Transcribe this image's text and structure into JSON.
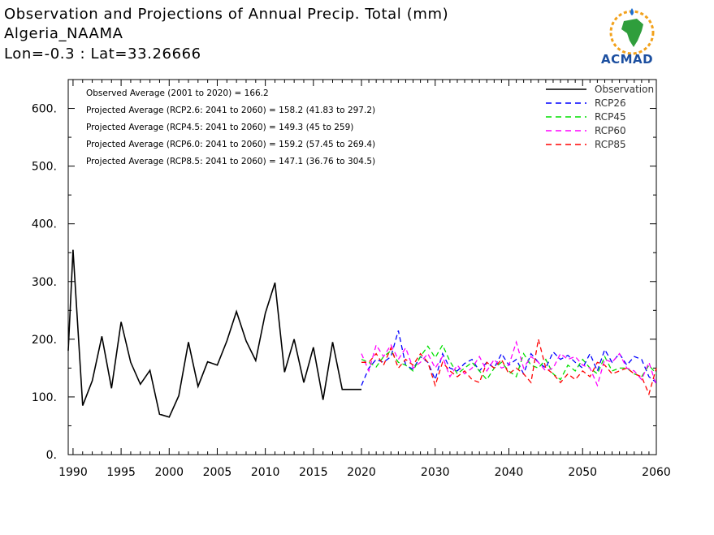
{
  "header": {
    "title": "Observation and Projections of Annual Precip. Total (mm)",
    "location": "Algeria_NAAMA",
    "coords": "Lon=-0.3 : Lat=33.26666"
  },
  "logo": {
    "text": "ACMAD"
  },
  "chart_data": {
    "type": "line",
    "title": "Observation and Projections of Annual Precip. Total (mm)",
    "xlabel": "",
    "ylabel": "",
    "xlim": [
      1989.5,
      2060
    ],
    "ylim": [
      0,
      650
    ],
    "x_ticks": [
      1990,
      1995,
      2000,
      2005,
      2010,
      2015,
      2020,
      2030,
      2040,
      2050,
      2060
    ],
    "y_ticks": [
      0,
      100,
      200,
      300,
      400,
      500,
      600
    ],
    "y_tick_labels": [
      "0.",
      "100.",
      "200.",
      "300.",
      "400.",
      "500.",
      "600."
    ],
    "grid": false,
    "legend_position": "top-right",
    "annotations": [
      "Observed Average (2001 to 2020) = 166.2",
      "Projected Average (RCP2.6: 2041 to 2060) = 158.2 (41.83 to 297.2)",
      "Projected Average (RCP4.5: 2041 to 2060) = 149.3 (45 to 259)",
      "Projected Average (RCP6.0: 2041 to 2060) = 159.2 (57.45 to 269.4)",
      "Projected Average (RCP8.5: 2041 to 2060) = 147.1 (36.76 to 304.5)"
    ],
    "series": [
      {
        "name": "Observation",
        "color": "#000000",
        "dashed": false,
        "x": [
          1989.5,
          1990,
          1991,
          1992,
          1993,
          1994,
          1995,
          1996,
          1997,
          1998,
          1999,
          2000,
          2001,
          2002,
          2003,
          2004,
          2005,
          2006,
          2007,
          2008,
          2009,
          2010,
          2011,
          2012,
          2013,
          2014,
          2015,
          2016,
          2017,
          2018,
          2019,
          2020
        ],
        "y": [
          180,
          355,
          85,
          128,
          205,
          115,
          230,
          160,
          122,
          146,
          70,
          65,
          102,
          195,
          118,
          161,
          155,
          197,
          248,
          197,
          163,
          245,
          298,
          143,
          200,
          125,
          186,
          95,
          195,
          113,
          113,
          113
        ]
      },
      {
        "name": "RCP26",
        "color": "#0000ff",
        "dashed": true,
        "x": [
          2020,
          2021,
          2022,
          2023,
          2024,
          2025,
          2026,
          2027,
          2028,
          2029,
          2030,
          2031,
          2032,
          2033,
          2034,
          2035,
          2036,
          2037,
          2038,
          2039,
          2040,
          2041,
          2042,
          2043,
          2044,
          2045,
          2046,
          2047,
          2048,
          2049,
          2050,
          2051,
          2052,
          2053,
          2054,
          2055,
          2056,
          2057,
          2058,
          2059,
          2060
        ],
        "y": [
          120,
          150,
          165,
          160,
          170,
          215,
          155,
          148,
          170,
          160,
          130,
          175,
          150,
          145,
          158,
          165,
          145,
          160,
          150,
          175,
          155,
          165,
          140,
          175,
          160,
          150,
          178,
          165,
          172,
          160,
          150,
          175,
          145,
          182,
          160,
          175,
          155,
          170,
          165,
          135,
          125
        ]
      },
      {
        "name": "RCP45",
        "color": "#00e000",
        "dashed": true,
        "x": [
          2020,
          2021,
          2022,
          2023,
          2024,
          2025,
          2026,
          2027,
          2028,
          2029,
          2030,
          2031,
          2032,
          2033,
          2034,
          2035,
          2036,
          2037,
          2038,
          2039,
          2040,
          2041,
          2042,
          2043,
          2044,
          2045,
          2046,
          2047,
          2048,
          2049,
          2050,
          2051,
          2052,
          2053,
          2054,
          2055,
          2056,
          2057,
          2058,
          2059,
          2060
        ],
        "y": [
          165,
          160,
          152,
          170,
          180,
          160,
          155,
          145,
          170,
          188,
          168,
          190,
          162,
          140,
          150,
          160,
          145,
          130,
          150,
          160,
          145,
          135,
          175,
          155,
          150,
          165,
          140,
          130,
          155,
          145,
          165,
          150,
          140,
          170,
          145,
          150,
          150,
          140,
          135,
          155,
          140
        ]
      },
      {
        "name": "RCP60",
        "color": "#ff00ff",
        "dashed": true,
        "x": [
          2020,
          2021,
          2022,
          2023,
          2024,
          2025,
          2026,
          2027,
          2028,
          2029,
          2030,
          2031,
          2032,
          2033,
          2034,
          2035,
          2036,
          2037,
          2038,
          2039,
          2040,
          2041,
          2042,
          2043,
          2044,
          2045,
          2046,
          2047,
          2048,
          2049,
          2050,
          2051,
          2052,
          2053,
          2054,
          2055,
          2056,
          2057,
          2058,
          2059,
          2060
        ],
        "y": [
          175,
          145,
          190,
          170,
          190,
          165,
          185,
          150,
          160,
          175,
          150,
          170,
          135,
          155,
          140,
          150,
          170,
          145,
          165,
          150,
          155,
          195,
          150,
          170,
          160,
          145,
          150,
          175,
          165,
          170,
          155,
          150,
          120,
          165,
          160,
          175,
          150,
          145,
          130,
          160,
          120
        ]
      },
      {
        "name": "RCP85",
        "color": "#ff0000",
        "dashed": true,
        "x": [
          2020,
          2021,
          2022,
          2023,
          2024,
          2025,
          2026,
          2027,
          2028,
          2029,
          2030,
          2031,
          2032,
          2033,
          2034,
          2035,
          2036,
          2037,
          2038,
          2039,
          2040,
          2041,
          2042,
          2043,
          2044,
          2045,
          2046,
          2047,
          2048,
          2049,
          2050,
          2051,
          2052,
          2053,
          2054,
          2055,
          2056,
          2057,
          2058,
          2059,
          2060
        ],
        "y": [
          160,
          160,
          175,
          155,
          185,
          150,
          165,
          155,
          175,
          160,
          120,
          160,
          145,
          135,
          145,
          130,
          125,
          160,
          150,
          165,
          140,
          150,
          140,
          125,
          200,
          150,
          140,
          125,
          140,
          130,
          145,
          135,
          160,
          155,
          140,
          145,
          150,
          140,
          135,
          105,
          150
        ]
      }
    ]
  }
}
